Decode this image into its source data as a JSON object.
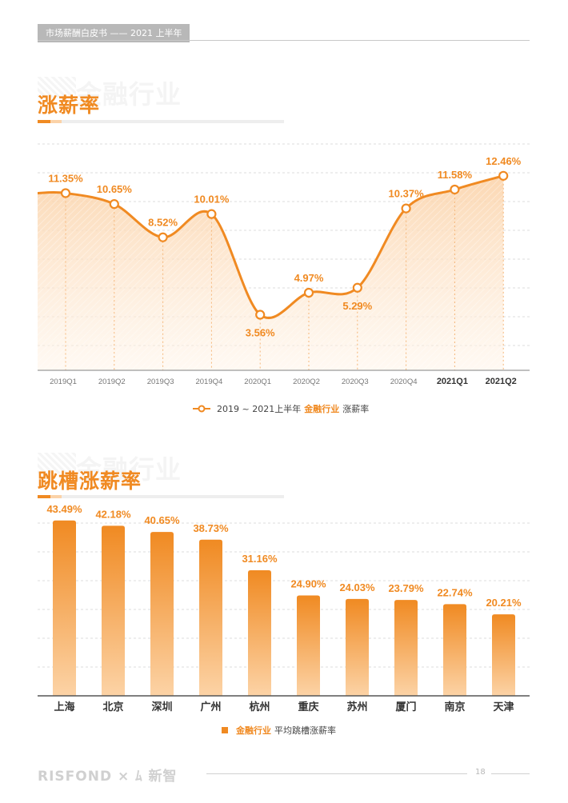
{
  "header": {
    "tag": "市场薪酬白皮书 —— 2021 上半年"
  },
  "section1": {
    "ghost": "金融行业",
    "title": "涨薪率"
  },
  "section2": {
    "ghost": "金融行业",
    "title": "跳槽涨薪率"
  },
  "legend1": {
    "prefix": "2019 ~ 2021上半年",
    "highlight": "金融行业",
    "suffix": "涨薪率"
  },
  "legend2": {
    "highlight": "金融行业",
    "suffix": "平均跳槽涨薪率"
  },
  "footer": {
    "brand": "RISFOND × ﾑ 新智",
    "page": "18"
  },
  "colors": {
    "accent": "#f08a22",
    "accent_light": "#fbd2a8",
    "grid": "#dddddd"
  },
  "chart_data": [
    {
      "type": "line",
      "categories": [
        "2019Q1",
        "2019Q2",
        "2019Q3",
        "2019Q4",
        "2020Q1",
        "2020Q2",
        "2020Q3",
        "2020Q4",
        "2021Q1",
        "2021Q2"
      ],
      "values": [
        11.35,
        10.65,
        8.52,
        10.01,
        3.56,
        4.97,
        5.29,
        10.37,
        11.58,
        12.46
      ],
      "labels": [
        "11.35%",
        "10.65%",
        "8.52%",
        "10.01%",
        "3.56%",
        "4.97%",
        "5.29%",
        "10.37%",
        "11.58%",
        "12.46%"
      ],
      "bold_categories": [
        "2021Q1",
        "2021Q2"
      ],
      "grid": true,
      "area_fill": true
    },
    {
      "type": "bar",
      "categories": [
        "上海",
        "北京",
        "深圳",
        "广州",
        "杭州",
        "重庆",
        "苏州",
        "厦门",
        "南京",
        "天津"
      ],
      "values": [
        43.49,
        42.18,
        40.65,
        38.73,
        31.16,
        24.9,
        24.03,
        23.79,
        22.74,
        20.21
      ],
      "labels": [
        "43.49%",
        "42.18%",
        "40.65%",
        "38.73%",
        "31.16%",
        "24.90%",
        "24.03%",
        "23.79%",
        "22.74%",
        "20.21%"
      ],
      "grid": true
    }
  ]
}
